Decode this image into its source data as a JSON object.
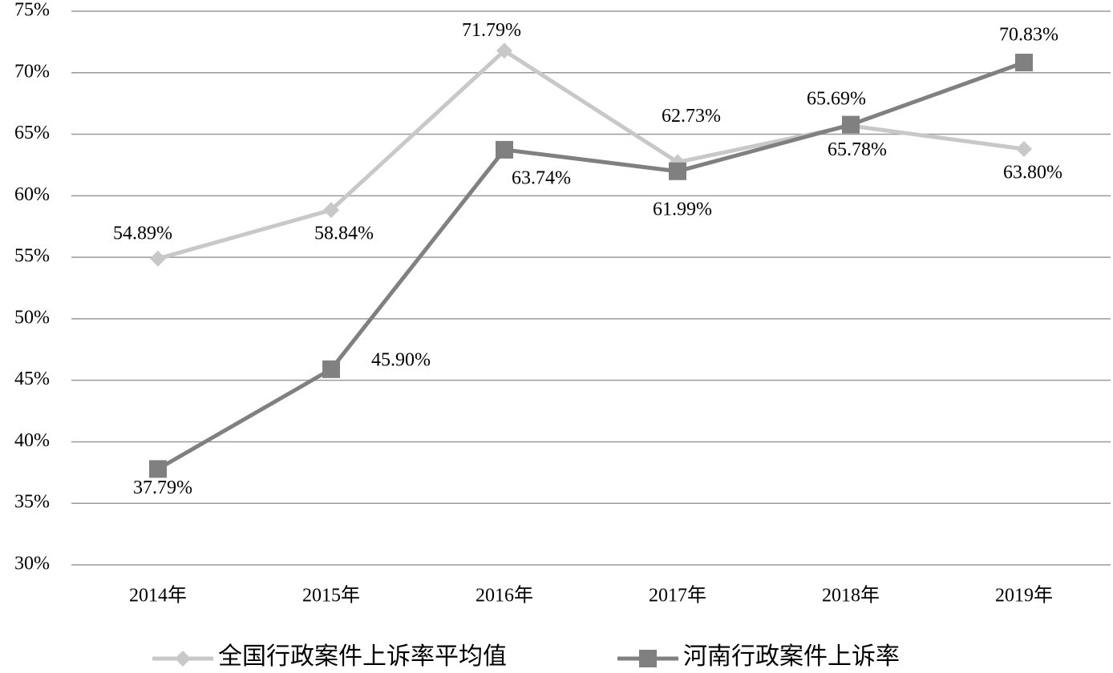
{
  "chart_data": {
    "type": "line",
    "categories": [
      "2014年",
      "2015年",
      "2016年",
      "2017年",
      "2018年",
      "2019年"
    ],
    "series": [
      {
        "name": "全国行政案件上诉率平均值",
        "color": "#c8c8c8",
        "marker": "diamond",
        "values": [
          54.89,
          58.84,
          71.79,
          62.73,
          65.69,
          63.8
        ],
        "value_labels": [
          "54.89%",
          "58.84%",
          "71.79%",
          "62.73%",
          "65.69%",
          "63.80%"
        ]
      },
      {
        "name": "河南行政案件上诉率",
        "color": "#808080",
        "marker": "square",
        "values": [
          37.79,
          45.9,
          63.74,
          61.99,
          65.78,
          70.83
        ],
        "value_labels": [
          "37.79%",
          "45.90%",
          "63.74%",
          "61.99%",
          "65.78%",
          "70.83%"
        ]
      }
    ],
    "ylim": [
      30,
      75
    ],
    "yticks": [
      {
        "value": 30,
        "label": "30%"
      },
      {
        "value": 35,
        "label": "35%"
      },
      {
        "value": 40,
        "label": "40%"
      },
      {
        "value": 45,
        "label": "45%"
      },
      {
        "value": 50,
        "label": "50%"
      },
      {
        "value": 55,
        "label": "55%"
      },
      {
        "value": 60,
        "label": "60%"
      },
      {
        "value": 65,
        "label": "65%"
      },
      {
        "value": 70,
        "label": "70%"
      },
      {
        "value": 75,
        "label": "75%"
      }
    ],
    "grid": true,
    "legend": "bottom"
  }
}
